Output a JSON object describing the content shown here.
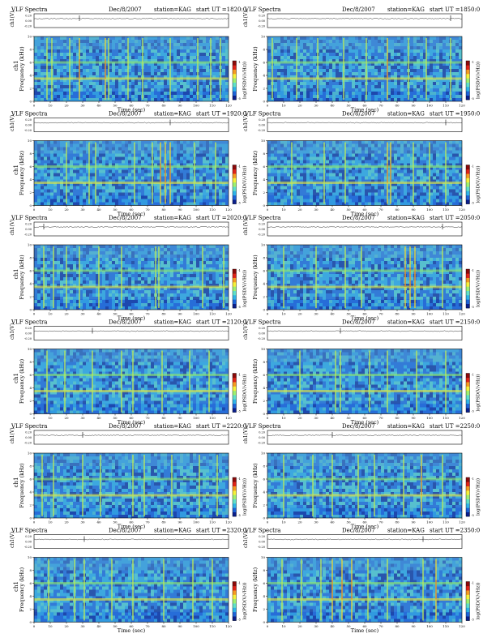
{
  "chart_data": {
    "type": "heatmap",
    "figure_title": "VLF Spectra",
    "date": "Dec/8/2007",
    "station": "station=KAG",
    "start_prefix": "start UT =",
    "xlabel": "Time (sec)",
    "ylabel": "Frequency (kHz)",
    "channel_label": "ch1",
    "waveform_ylabel": "ch1(V)",
    "colorbar_label": "log(PSD(V/√Hz))",
    "xlim": [
      0,
      120
    ],
    "xticks": [
      "0",
      "10",
      "20",
      "30",
      "40",
      "50",
      "60",
      "70",
      "80",
      "90",
      "100",
      "110",
      "120"
    ],
    "ylim": [
      0,
      10
    ],
    "yticks": [
      "0",
      "2",
      "4",
      "6",
      "8",
      "10"
    ],
    "waveform_ylim": [
      -0.2,
      0.2
    ],
    "waveform_yticks": [
      "0.20",
      "0.00",
      "-0.20"
    ],
    "colorbar_ticks": [
      "-1",
      "-5"
    ],
    "colormap": [
      "#0b1f8c",
      "#1d63d8",
      "#2fb4e8",
      "#5fe0c8",
      "#9ff070",
      "#f5f03a",
      "#f59a22",
      "#e02318",
      "#8c0a0a"
    ],
    "bands_khz": [
      {
        "freq": 6.0,
        "kind": "green"
      },
      {
        "freq": 3.5,
        "kind": "yellow"
      }
    ],
    "panels": [
      {
        "start": "1820:0",
        "date": "Dec/8/2007",
        "show_channel": true,
        "spikes": [
          {
            "t": 8,
            "s": 0.7
          },
          {
            "t": 11,
            "s": 0.6
          },
          {
            "t": 22,
            "s": 0.6
          },
          {
            "t": 28,
            "s": 0.9
          },
          {
            "t": 44,
            "s": 1.0
          },
          {
            "t": 46,
            "s": 0.8
          },
          {
            "t": 58,
            "s": 0.5
          },
          {
            "t": 67,
            "s": 0.6
          },
          {
            "t": 84,
            "s": 0.5
          },
          {
            "t": 101,
            "s": 0.6
          },
          {
            "t": 109,
            "s": 0.7
          },
          {
            "t": 115,
            "s": 0.5
          }
        ]
      },
      {
        "start": "1850:0",
        "date": "Dec/8/2007",
        "show_channel": false,
        "spikes": [
          {
            "t": 3,
            "s": 0.6
          },
          {
            "t": 18,
            "s": 0.6
          },
          {
            "t": 31,
            "s": 0.7
          },
          {
            "t": 47,
            "s": 0.8
          },
          {
            "t": 61,
            "s": 0.5
          },
          {
            "t": 74,
            "s": 0.9
          },
          {
            "t": 87,
            "s": 0.5
          },
          {
            "t": 98,
            "s": 0.7
          },
          {
            "t": 113,
            "s": 0.6
          }
        ]
      },
      {
        "start": "1920:0",
        "date": "Dec/8/2007",
        "show_channel": true,
        "spikes": [
          {
            "t": 20,
            "s": 0.6
          },
          {
            "t": 34,
            "s": 0.5
          },
          {
            "t": 38,
            "s": 0.6
          },
          {
            "t": 62,
            "s": 0.6
          },
          {
            "t": 73,
            "s": 0.5
          },
          {
            "t": 78,
            "s": 1.0
          },
          {
            "t": 81,
            "s": 1.0
          },
          {
            "t": 84,
            "s": 0.9
          },
          {
            "t": 99,
            "s": 0.6
          },
          {
            "t": 112,
            "s": 0.5
          }
        ]
      },
      {
        "start": "1950:0",
        "date": "Dec/8/2007",
        "show_channel": false,
        "spikes": [
          {
            "t": 15,
            "s": 0.6
          },
          {
            "t": 35,
            "s": 0.5
          },
          {
            "t": 48,
            "s": 0.6
          },
          {
            "t": 74,
            "s": 1.0
          },
          {
            "t": 76,
            "s": 0.9
          },
          {
            "t": 90,
            "s": 0.5
          },
          {
            "t": 100,
            "s": 0.7
          },
          {
            "t": 110,
            "s": 0.6
          }
        ]
      },
      {
        "start": "2020:0",
        "date": "Dec/8/2007",
        "show_channel": true,
        "spikes": [
          {
            "t": 6,
            "s": 0.6
          },
          {
            "t": 12,
            "s": 0.8
          },
          {
            "t": 20,
            "s": 0.5
          },
          {
            "t": 28,
            "s": 0.6
          },
          {
            "t": 40,
            "s": 0.5
          },
          {
            "t": 54,
            "s": 0.5
          },
          {
            "t": 75,
            "s": 0.7
          },
          {
            "t": 77,
            "s": 0.8
          },
          {
            "t": 104,
            "s": 0.6
          },
          {
            "t": 117,
            "s": 0.6
          }
        ]
      },
      {
        "start": "2050:0",
        "date": "Dec/8/2007",
        "show_channel": false,
        "spikes": [
          {
            "t": 10,
            "s": 0.7
          },
          {
            "t": 30,
            "s": 0.6
          },
          {
            "t": 48,
            "s": 0.6
          },
          {
            "t": 58,
            "s": 0.5
          },
          {
            "t": 85,
            "s": 0.9
          },
          {
            "t": 88,
            "s": 1.0
          },
          {
            "t": 91,
            "s": 0.9
          },
          {
            "t": 108,
            "s": 0.7
          }
        ]
      },
      {
        "start": "2120:0",
        "date": "Dec/8/2007",
        "show_channel": true,
        "spikes": [
          {
            "t": 8,
            "s": 0.6
          },
          {
            "t": 19,
            "s": 0.5
          },
          {
            "t": 36,
            "s": 0.6
          },
          {
            "t": 54,
            "s": 0.5
          },
          {
            "t": 61,
            "s": 0.6
          },
          {
            "t": 79,
            "s": 0.5
          },
          {
            "t": 96,
            "s": 0.8
          },
          {
            "t": 108,
            "s": 0.7
          }
        ]
      },
      {
        "start": "2150:0",
        "date": "Dec/8/2007",
        "show_channel": false,
        "spikes": [
          {
            "t": 20,
            "s": 0.6
          },
          {
            "t": 42,
            "s": 0.8
          },
          {
            "t": 45,
            "s": 0.7
          },
          {
            "t": 63,
            "s": 0.5
          },
          {
            "t": 74,
            "s": 0.6
          },
          {
            "t": 92,
            "s": 0.5
          },
          {
            "t": 110,
            "s": 0.5
          }
        ]
      },
      {
        "start": "2220:0",
        "date": "Dec/8/2007",
        "show_channel": true,
        "spikes": [
          {
            "t": 5,
            "s": 0.7
          },
          {
            "t": 12,
            "s": 0.6
          },
          {
            "t": 30,
            "s": 0.6
          },
          {
            "t": 41,
            "s": 0.6
          },
          {
            "t": 61,
            "s": 0.7
          },
          {
            "t": 68,
            "s": 0.6
          },
          {
            "t": 85,
            "s": 0.5
          },
          {
            "t": 102,
            "s": 0.6
          },
          {
            "t": 113,
            "s": 0.6
          }
        ]
      },
      {
        "start": "2250:0",
        "date": "Dec/8/2007",
        "show_channel": false,
        "spikes": [
          {
            "t": 10,
            "s": 0.6
          },
          {
            "t": 28,
            "s": 0.6
          },
          {
            "t": 40,
            "s": 0.6
          },
          {
            "t": 56,
            "s": 0.6
          },
          {
            "t": 66,
            "s": 0.5
          },
          {
            "t": 84,
            "s": 0.6
          },
          {
            "t": 95,
            "s": 1.0
          },
          {
            "t": 108,
            "s": 0.7
          }
        ]
      },
      {
        "start": "2320:0",
        "date": "Dec/8/2007",
        "show_channel": true,
        "spikes": [
          {
            "t": 9,
            "s": 0.6
          },
          {
            "t": 25,
            "s": 0.6
          },
          {
            "t": 31,
            "s": 0.7
          },
          {
            "t": 48,
            "s": 0.6
          },
          {
            "t": 61,
            "s": 0.5
          },
          {
            "t": 80,
            "s": 0.6
          },
          {
            "t": 98,
            "s": 0.5
          },
          {
            "t": 110,
            "s": 0.6
          }
        ]
      },
      {
        "start": "2350:0",
        "date": "Dec/8/2007",
        "show_channel": false,
        "spikes": [
          {
            "t": 9,
            "s": 0.7
          },
          {
            "t": 21,
            "s": 0.6
          },
          {
            "t": 33,
            "s": 0.8
          },
          {
            "t": 40,
            "s": 1.0
          },
          {
            "t": 46,
            "s": 1.0
          },
          {
            "t": 52,
            "s": 0.9
          },
          {
            "t": 62,
            "s": 0.5
          },
          {
            "t": 74,
            "s": 0.6
          },
          {
            "t": 96,
            "s": 0.6
          },
          {
            "t": 104,
            "s": 0.9
          }
        ]
      }
    ]
  }
}
